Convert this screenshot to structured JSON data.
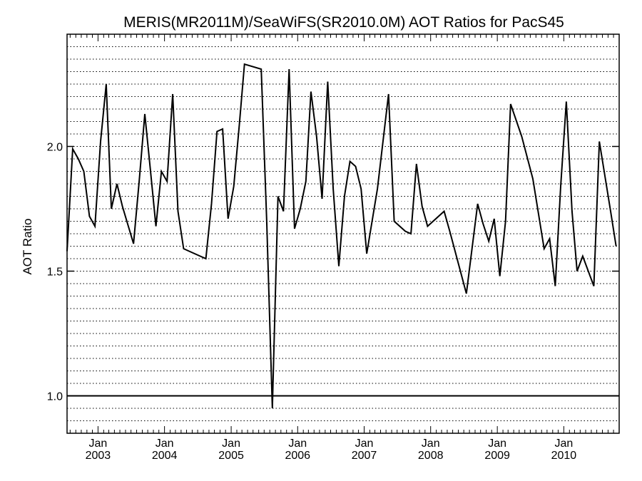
{
  "chart_data": {
    "type": "line",
    "title": "MERIS(MR2011M)/SeaWiFS(SR2010.0M)  AOT Ratios for PacS45",
    "xlabel": "",
    "ylabel": "AOT Ratio",
    "ylim": [
      0.85,
      2.45
    ],
    "ytick_values": [
      1.0,
      1.5,
      2.0
    ],
    "ytick_labels": [
      "1.0",
      "1.5",
      "2.0"
    ],
    "reference_line": 1.0,
    "grid": "horizontal dotted every 0.05",
    "xlim": [
      "2002-07-15",
      "2010-11-01"
    ],
    "xticks": [
      {
        "date": "2003-01-01",
        "line1": "Jan",
        "line2": "2003"
      },
      {
        "date": "2004-01-01",
        "line1": "Jan",
        "line2": "2004"
      },
      {
        "date": "2005-01-01",
        "line1": "Jan",
        "line2": "2005"
      },
      {
        "date": "2006-01-01",
        "line1": "Jan",
        "line2": "2006"
      },
      {
        "date": "2007-01-01",
        "line1": "Jan",
        "line2": "2007"
      },
      {
        "date": "2008-01-01",
        "line1": "Jan",
        "line2": "2008"
      },
      {
        "date": "2009-01-01",
        "line1": "Jan",
        "line2": "2009"
      },
      {
        "date": "2010-01-01",
        "line1": "Jan",
        "line2": "2010"
      }
    ],
    "series": [
      {
        "color": "#000000",
        "x": [
          "2002-07-15",
          "2002-08-15",
          "2002-09-15",
          "2002-10-15",
          "2002-11-15",
          "2002-12-15",
          "2003-01-15",
          "2003-02-15",
          "2003-03-15",
          "2003-04-15",
          "2003-05-15",
          "2003-07-15",
          "2003-08-15",
          "2003-09-15",
          "2003-10-15",
          "2003-11-15",
          "2003-12-15",
          "2004-01-15",
          "2004-02-15",
          "2004-03-15",
          "2004-04-15",
          "2004-05-15",
          "2004-08-15",
          "2004-09-15",
          "2004-10-15",
          "2004-11-15",
          "2004-12-15",
          "2005-01-15",
          "2005-02-15",
          "2005-03-15",
          "2005-06-15",
          "2005-07-15",
          "2005-08-15",
          "2005-09-15",
          "2005-10-15",
          "2005-11-15",
          "2005-12-15",
          "2006-01-15",
          "2006-02-15",
          "2006-03-15",
          "2006-04-15",
          "2006-05-15",
          "2006-06-15",
          "2006-07-15",
          "2006-08-15",
          "2006-09-15",
          "2006-10-15",
          "2006-11-15",
          "2006-12-15",
          "2007-01-15",
          "2007-03-15",
          "2007-05-15",
          "2007-06-15",
          "2007-08-15",
          "2007-09-15",
          "2007-10-15",
          "2007-11-15",
          "2007-12-15",
          "2008-03-15",
          "2008-04-15",
          "2008-07-15",
          "2008-08-15",
          "2008-09-15",
          "2008-10-15",
          "2008-11-15",
          "2008-12-15",
          "2009-01-15",
          "2009-02-15",
          "2009-03-15",
          "2009-05-15",
          "2009-07-15",
          "2009-09-15",
          "2009-10-15",
          "2009-11-15",
          "2009-12-15",
          "2010-01-15",
          "2010-02-15",
          "2010-03-15",
          "2010-04-15",
          "2010-06-15",
          "2010-07-15",
          "2010-08-15",
          "2010-09-15",
          "2010-10-15"
        ],
        "values": [
          1.58,
          1.99,
          1.95,
          1.9,
          1.72,
          1.68,
          2.02,
          2.25,
          1.75,
          1.85,
          1.76,
          1.61,
          1.86,
          2.13,
          1.91,
          1.68,
          1.9,
          1.86,
          2.21,
          1.74,
          1.59,
          1.58,
          1.55,
          1.77,
          2.06,
          2.07,
          1.71,
          1.84,
          2.09,
          2.33,
          2.31,
          1.7,
          0.95,
          1.8,
          1.74,
          2.31,
          1.67,
          1.75,
          1.86,
          2.22,
          2.04,
          1.79,
          2.26,
          1.83,
          1.52,
          1.8,
          1.94,
          1.92,
          1.83,
          1.57,
          1.83,
          2.21,
          1.7,
          1.66,
          1.65,
          1.93,
          1.76,
          1.68,
          1.74,
          1.66,
          1.41,
          1.59,
          1.77,
          1.69,
          1.62,
          1.71,
          1.48,
          1.7,
          2.17,
          2.04,
          1.87,
          1.59,
          1.63,
          1.44,
          1.84,
          2.18,
          1.74,
          1.5,
          1.56,
          1.44,
          2.02,
          1.88,
          1.74,
          1.6
        ]
      }
    ]
  }
}
